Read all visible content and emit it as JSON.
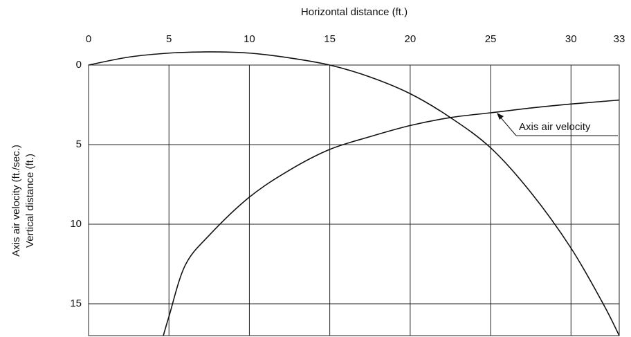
{
  "chart_data": {
    "type": "line",
    "x_label": "Horizontal distance (ft.)",
    "y_label": [
      "Axis air velocity (ft./sec.)",
      "Vertical distance (ft.)"
    ],
    "xlim": [
      0,
      33
    ],
    "xticks": [
      0,
      5,
      10,
      15,
      20,
      25,
      30,
      33
    ],
    "ylim": [
      0,
      17
    ],
    "yticks": [
      0,
      5,
      10,
      15
    ],
    "y_inverted": true,
    "x_axis_top": true,
    "grid": true,
    "series": [
      {
        "name": "Vertical distance",
        "color": "#111111",
        "x": [
          0,
          2.5,
          5,
          7.5,
          10,
          12.5,
          15,
          17.5,
          20,
          22.5,
          25,
          27.5,
          30,
          32,
          33
        ],
        "values": [
          0,
          -0.5,
          -0.75,
          -0.83,
          -0.75,
          -0.45,
          0,
          0.75,
          1.8,
          3.3,
          5.2,
          8,
          11.5,
          15,
          17
        ]
      },
      {
        "name": "Axis air velocity",
        "color": "#111111",
        "x": [
          4.65,
          5,
          6,
          7.5,
          10,
          12.5,
          15,
          17.5,
          20,
          22.5,
          25,
          27.5,
          30,
          33
        ],
        "values": [
          17,
          15.8,
          12.6,
          10.7,
          8.3,
          6.6,
          5.3,
          4.5,
          3.8,
          3.3,
          3.0,
          2.7,
          2.45,
          2.2
        ]
      }
    ],
    "annotation": "Axis air velocity"
  }
}
